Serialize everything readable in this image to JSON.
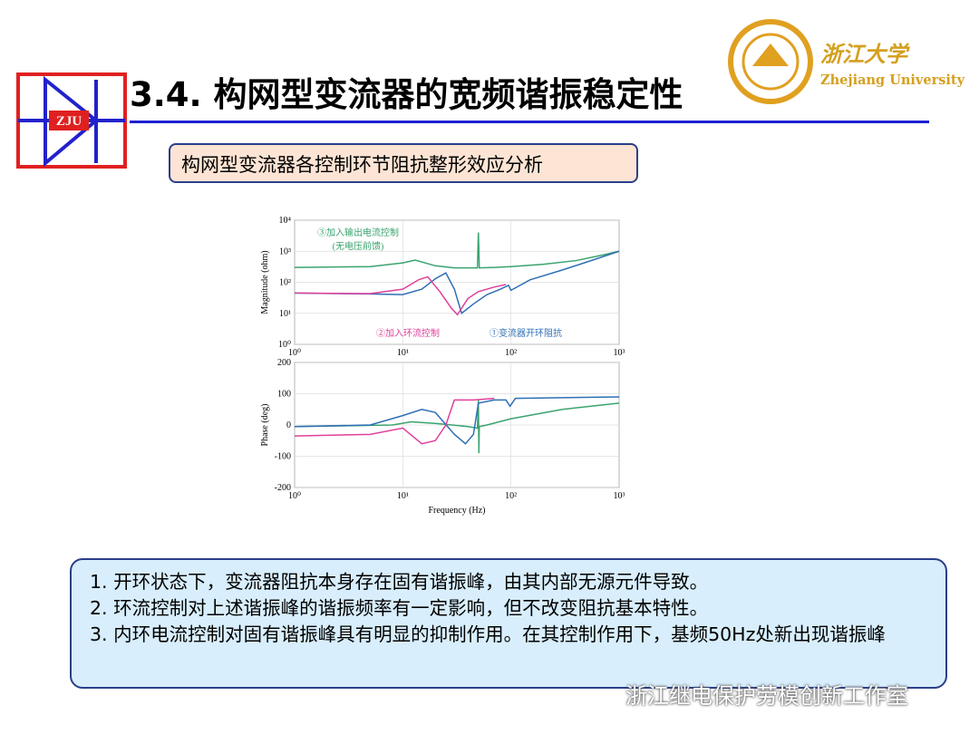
{
  "header": {
    "title": "3.4. 构网型变流器的宽频谐振稳定性",
    "logo": "ZJU",
    "university_cn": "浙江大学",
    "university_en": "Zhejiang University"
  },
  "subtitle": "构网型变流器各控制环节阻抗整形效应分析",
  "notes": [
    "1. 开环状态下，变流器阻抗本身存在固有谐振峰，由其内部无源元件导致。",
    "2. 环流控制对上述谐振峰的谐振频率有一定影响，但不改变阻抗基本特性。",
    "3. 内环电流控制对固有谐振峰具有明显的抑制作用。在其控制作用下，基频50Hz处新出现谐振峰"
  ],
  "watermark": "浙江继电保护劳模创新工作室",
  "chart_data": [
    {
      "type": "line",
      "ylabel": "Magnitude (ohm)",
      "xlog": true,
      "ylog": true,
      "grid": true,
      "xlim": [
        1,
        1000
      ],
      "xticks": [
        {
          "value": 1,
          "label": "10⁰"
        },
        {
          "value": 10,
          "label": "10¹"
        },
        {
          "value": 100,
          "label": "10²"
        },
        {
          "value": 1000,
          "label": "10³"
        }
      ],
      "ylim": [
        1,
        10000
      ],
      "yticks": [
        {
          "value": 1,
          "label": "10⁰"
        },
        {
          "value": 10,
          "label": "10¹"
        },
        {
          "value": 100,
          "label": "10²"
        },
        {
          "value": 1000,
          "label": "10³"
        },
        {
          "value": 10000,
          "label": "10⁴"
        }
      ],
      "annotations": [
        "③加入输出电流控制",
        "(无电压前馈)",
        "②加入环流控制",
        "①变流器开环阻抗"
      ],
      "series": [
        {
          "color": "#3aa36e",
          "x": [
            1,
            5,
            10,
            13,
            20,
            30,
            49,
            50,
            51,
            70,
            100,
            200,
            400,
            700,
            1000
          ],
          "values": [
            300,
            320,
            420,
            520,
            340,
            290,
            290,
            4000,
            290,
            300,
            320,
            380,
            500,
            750,
            1000
          ]
        },
        {
          "color": "#2f6fb5",
          "x": [
            1,
            5,
            10,
            15,
            20,
            25,
            30,
            35,
            45,
            60,
            80,
            95,
            100,
            150,
            300,
            600,
            1000
          ],
          "values": [
            45,
            42,
            40,
            60,
            130,
            200,
            60,
            10,
            20,
            40,
            60,
            80,
            55,
            120,
            250,
            550,
            1000
          ]
        },
        {
          "color": "#e0409a",
          "x": [
            1,
            5,
            10,
            14,
            17,
            22,
            28,
            32,
            40,
            50,
            70,
            90
          ],
          "values": [
            45,
            43,
            60,
            120,
            150,
            50,
            15,
            9,
            30,
            50,
            70,
            85
          ]
        }
      ]
    },
    {
      "type": "line",
      "xlabel": "Frequency (Hz)",
      "ylabel": "Phase (deg)",
      "xlog": true,
      "grid": true,
      "xlim": [
        1,
        1000
      ],
      "xticks": [
        {
          "value": 1,
          "label": "10⁰"
        },
        {
          "value": 10,
          "label": "10¹"
        },
        {
          "value": 100,
          "label": "10²"
        },
        {
          "value": 1000,
          "label": "10³"
        }
      ],
      "ylim": [
        -200,
        200
      ],
      "yticks": [
        -200,
        -100,
        0,
        100,
        200
      ],
      "series": [
        {
          "color": "#3aa36e",
          "x": [
            1,
            8,
            12,
            20,
            40,
            49,
            50,
            50.5,
            51,
            60,
            100,
            300,
            1000
          ],
          "values": [
            -5,
            0,
            10,
            5,
            -5,
            -10,
            80,
            -90,
            -5,
            0,
            20,
            50,
            70
          ]
        },
        {
          "color": "#2f6fb5",
          "x": [
            1,
            5,
            10,
            15,
            20,
            30,
            38,
            45,
            50,
            70,
            90,
            98,
            110,
            1000
          ],
          "values": [
            -5,
            0,
            30,
            50,
            40,
            -30,
            -60,
            -30,
            70,
            80,
            80,
            60,
            85,
            90
          ]
        },
        {
          "color": "#e0409a",
          "x": [
            1,
            5,
            10,
            15,
            20,
            25,
            30,
            45,
            70
          ],
          "values": [
            -35,
            -30,
            -10,
            -60,
            -50,
            0,
            80,
            80,
            85
          ]
        }
      ]
    }
  ]
}
